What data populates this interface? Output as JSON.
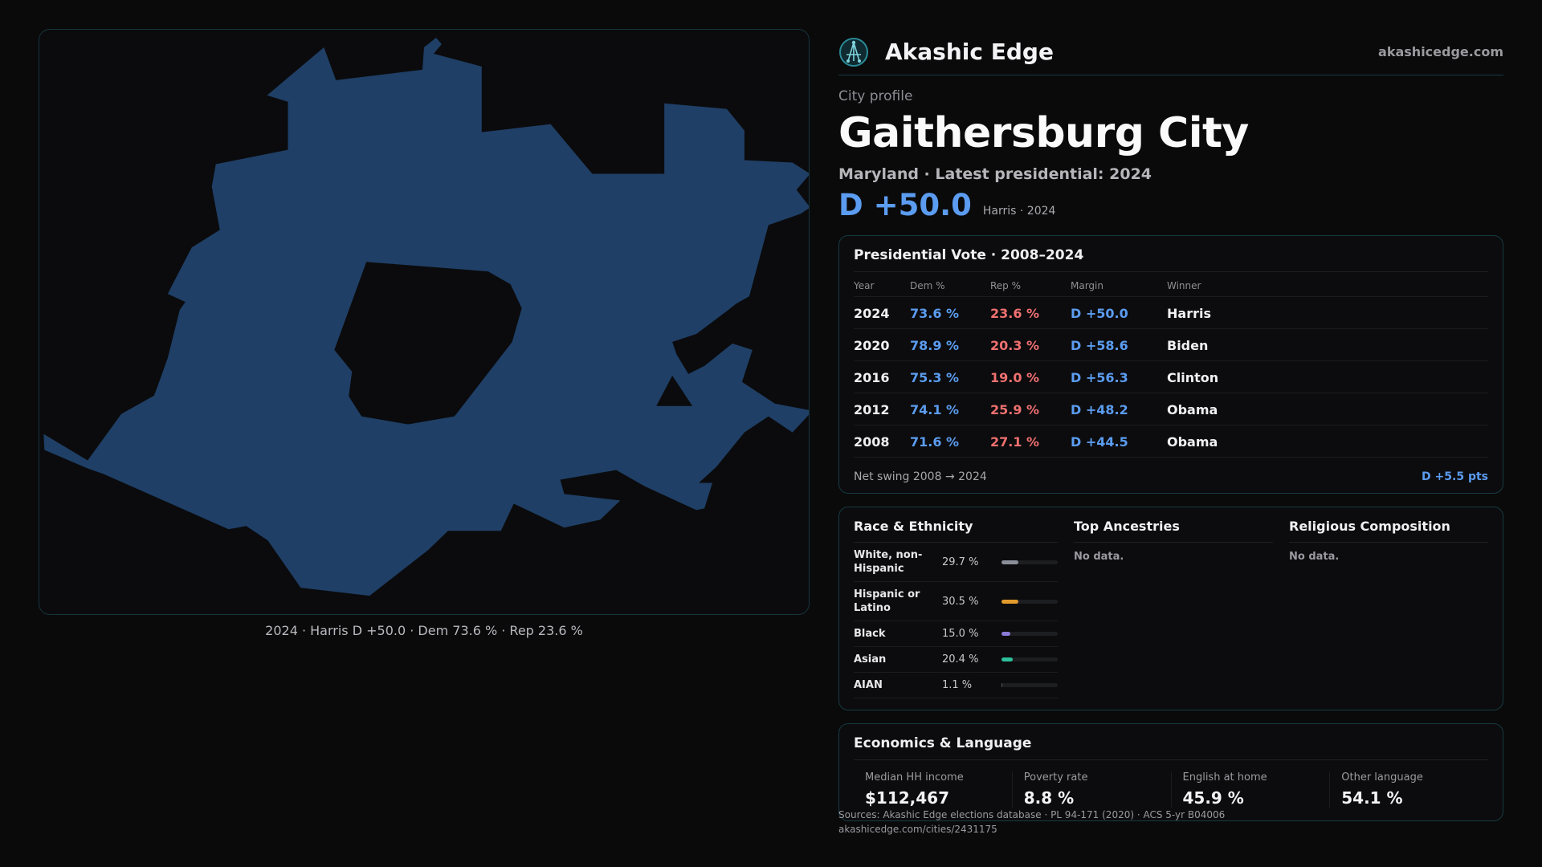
{
  "map": {
    "caption": "2024 · Harris D +50.0 · Dem 73.6 % · Rep 23.6 %",
    "fill_color": "#1f3f66"
  },
  "brand": {
    "name": "Akashic Edge",
    "url": "akashicedge.com",
    "logo_icon": "compass-network-icon"
  },
  "profile": {
    "eyebrow": "City profile",
    "city": "Gaithersburg City",
    "subtitle": "Maryland · Latest presidential: 2024",
    "margin": "D +50.0",
    "margin_note": "Harris · 2024"
  },
  "presidential": {
    "title": "Presidential Vote · 2008–2024",
    "headers": [
      "Year",
      "Dem %",
      "Rep %",
      "Margin",
      "Winner"
    ],
    "rows": [
      {
        "year": "2024",
        "dem": "73.6 %",
        "rep": "23.6 %",
        "margin": "D +50.0",
        "winner": "Harris"
      },
      {
        "year": "2020",
        "dem": "78.9 %",
        "rep": "20.3 %",
        "margin": "D +58.6",
        "winner": "Biden"
      },
      {
        "year": "2016",
        "dem": "75.3 %",
        "rep": "19.0 %",
        "margin": "D +56.3",
        "winner": "Clinton"
      },
      {
        "year": "2012",
        "dem": "74.1 %",
        "rep": "25.9 %",
        "margin": "D +48.2",
        "winner": "Obama"
      },
      {
        "year": "2008",
        "dem": "71.6 %",
        "rep": "27.1 %",
        "margin": "D +44.5",
        "winner": "Obama"
      }
    ],
    "swing_label": "Net swing 2008 → 2024",
    "swing_value": "D +5.5 pts"
  },
  "race": {
    "title": "Race & Ethnicity",
    "rows": [
      {
        "name": "White, non-Hispanic",
        "pct": "29.7 %",
        "value": 29.7,
        "color": "#8a8f99"
      },
      {
        "name": "Hispanic or Latino",
        "pct": "30.5 %",
        "value": 30.5,
        "color": "#e39a2c"
      },
      {
        "name": "Black",
        "pct": "15.0 %",
        "value": 15.0,
        "color": "#8b7ad8"
      },
      {
        "name": "Asian",
        "pct": "20.4 %",
        "value": 20.4,
        "color": "#2cc09a"
      },
      {
        "name": "AIAN",
        "pct": "1.1 %",
        "value": 1.1,
        "color": "#555a60"
      }
    ]
  },
  "ancestries": {
    "title": "Top Ancestries",
    "empty": "No data."
  },
  "religion": {
    "title": "Religious Composition",
    "empty": "No data."
  },
  "economics": {
    "title": "Economics & Language",
    "cells": [
      {
        "label": "Median HH income",
        "value": "$112,467"
      },
      {
        "label": "Poverty rate",
        "value": "8.8 %"
      },
      {
        "label": "English at home",
        "value": "45.9 %"
      },
      {
        "label": "Other language",
        "value": "54.1 %"
      }
    ]
  },
  "footer": {
    "sources": "Sources: Akashic Edge elections database · PL 94-171 (2020) · ACS 5-yr B04006",
    "link": "akashicedge.com/cities/2431175"
  }
}
